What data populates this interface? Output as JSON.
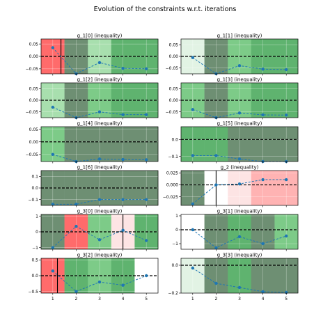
{
  "figure_title": "Evolution of the constraints w.r.t. iterations",
  "colors": {
    "line": "#1f77b4",
    "strong_green": "#5fb36f",
    "green": "#7dcb88",
    "light_green": "#a8dfae",
    "pale_green": "#e2f3e4",
    "dark_green": "#6e8f73",
    "red": "#ff6b6b",
    "pink": "#ffb3b3",
    "pale_pink": "#fde4e4",
    "white": "#ffffff",
    "zero_line": "#000000"
  },
  "chart_data": [
    {
      "type": "line",
      "title": "g_1[0] (inequality)",
      "x": [
        1,
        2,
        3,
        4,
        5
      ],
      "values": [
        0.035,
        -0.07,
        -0.025,
        -0.048,
        -0.05
      ],
      "ylim": [
        -0.07,
        0.07
      ],
      "yticks": [
        -0.05,
        0,
        0.05
      ],
      "ytick_labels": [
        "−0.05",
        "0.00",
        "0.05"
      ],
      "cell_fills": [
        "red",
        "dark_green",
        "light_green",
        "strong_green",
        "strong_green"
      ],
      "vline_x": 1.35
    },
    {
      "type": "line",
      "title": "g_1[1] (inequality)",
      "x": [
        1,
        2,
        3,
        4,
        5
      ],
      "values": [
        -0.005,
        -0.075,
        -0.04,
        -0.055,
        -0.057
      ],
      "ylim": [
        -0.075,
        0.075
      ],
      "yticks": [
        -0.05,
        0,
        0.05
      ],
      "ytick_labels": [
        "−0.05",
        "0.00",
        "0.05"
      ],
      "cell_fills": [
        "pale_green",
        "dark_green",
        "green",
        "strong_green",
        "strong_green"
      ],
      "vline_x": null
    },
    {
      "type": "line",
      "title": "g_1[2] (inequality)",
      "x": [
        1,
        2,
        3,
        4,
        5
      ],
      "values": [
        -0.03,
        -0.075,
        -0.05,
        -0.062,
        -0.062
      ],
      "ylim": [
        -0.075,
        0.075
      ],
      "yticks": [
        -0.05,
        0,
        0.05
      ],
      "ytick_labels": [
        "−0.05",
        "0.00",
        "0.05"
      ],
      "cell_fills": [
        "light_green",
        "dark_green",
        "green",
        "strong_green",
        "strong_green"
      ],
      "vline_x": null
    },
    {
      "type": "line",
      "title": "g_1[3] (inequality)",
      "x": [
        1,
        2,
        3,
        4,
        5
      ],
      "values": [
        -0.04,
        -0.075,
        -0.055,
        -0.063,
        -0.064
      ],
      "ylim": [
        -0.075,
        0.075
      ],
      "yticks": [
        -0.05,
        0,
        0.05
      ],
      "ytick_labels": [
        "−0.05",
        "0.00",
        "0.05"
      ],
      "cell_fills": [
        "green",
        "dark_green",
        "green",
        "strong_green",
        "strong_green"
      ],
      "vline_x": null
    },
    {
      "type": "line",
      "title": "g_1[4] (inequality)",
      "x": [
        1,
        2,
        3,
        4,
        5
      ],
      "values": [
        -0.05,
        -0.078,
        -0.068,
        -0.07,
        -0.071
      ],
      "ylim": [
        -0.078,
        0.06
      ],
      "yticks": [
        -0.05,
        0,
        0.05
      ],
      "ytick_labels": [
        "−0.05",
        "0.00",
        "0.05"
      ],
      "cell_fills": [
        "green",
        "dark_green",
        "dark_green",
        "dark_green",
        "dark_green"
      ],
      "vline_x": null
    },
    {
      "type": "line",
      "title": "g_1[5] (inequality)",
      "x": [
        1,
        2,
        3,
        4,
        5
      ],
      "values": [
        -0.095,
        -0.095,
        -0.115,
        -0.13,
        -0.13
      ],
      "ylim": [
        -0.13,
        0.075
      ],
      "yticks": [
        -0.1,
        0
      ],
      "ytick_labels": [
        "−0.1",
        "0.0"
      ],
      "cell_fills": [
        "strong_green",
        "strong_green",
        "dark_green",
        "dark_green",
        "dark_green"
      ],
      "vline_x": null
    },
    {
      "type": "line",
      "title": "g_1[6] (inequality)",
      "x": [
        1,
        2,
        3,
        4,
        5
      ],
      "values": [
        -0.14,
        -0.14,
        -0.1,
        -0.1,
        -0.1
      ],
      "ylim": [
        -0.15,
        0.15
      ],
      "yticks": [
        -0.1,
        0,
        0.1
      ],
      "ytick_labels": [
        "−0.1",
        "0.0",
        "0.1"
      ],
      "cell_fills": [
        "dark_green",
        "dark_green",
        "dark_green",
        "dark_green",
        "dark_green"
      ],
      "vline_x": null
    },
    {
      "type": "line",
      "title": "g_2 (inequality)",
      "x": [
        1,
        2,
        3,
        4,
        5
      ],
      "values": [
        -0.04,
        0.0,
        0.002,
        0.011,
        0.011
      ],
      "ylim": [
        -0.043,
        0.03
      ],
      "yticks": [
        -0.025,
        0,
        0.025
      ],
      "ytick_labels": [
        "−0.025",
        "0.000",
        "0.025"
      ],
      "cell_fills": [
        "dark_green",
        "white",
        "pale_pink",
        "pink",
        "pink"
      ],
      "vline_x": 2.0
    },
    {
      "type": "line",
      "title": "g_3[0] (inequality)",
      "x": [
        1,
        2,
        3,
        4,
        5
      ],
      "values": [
        -1.0,
        0.35,
        -0.5,
        0.1,
        -0.55
      ],
      "ylim": [
        -1.1,
        1.1
      ],
      "yticks": [
        -1,
        0,
        1
      ],
      "ytick_labels": [
        "−1",
        "0",
        "1"
      ],
      "cell_fills": [
        "dark_green",
        "red",
        "green",
        "pale_pink",
        "strong_green"
      ],
      "vline_x": 4.0
    },
    {
      "type": "line",
      "title": "g_3[1] (inequality)",
      "x": [
        1,
        2,
        3,
        4,
        5
      ],
      "values": [
        0.0,
        -1.3,
        -0.5,
        -1.0,
        -0.45
      ],
      "ylim": [
        -1.4,
        1.1
      ],
      "yticks": [
        -1,
        0,
        1
      ],
      "ytick_labels": [
        "−1",
        "0",
        "1"
      ],
      "cell_fills": [
        "white",
        "dark_green",
        "strong_green",
        "dark_green",
        "green"
      ],
      "vline_x": null
    },
    {
      "type": "line",
      "title": "g_3[2] (inequality)",
      "x": [
        1,
        2,
        3,
        4,
        5
      ],
      "values": [
        0.15,
        -0.5,
        -0.2,
        -0.3,
        0.0
      ],
      "ylim": [
        -0.55,
        0.55
      ],
      "yticks": [
        -0.5,
        0,
        0.5
      ],
      "ytick_labels": [
        "−0.5",
        "0.0",
        "0.5"
      ],
      "cell_fills": [
        "red",
        "strong_green",
        "green",
        "strong_green",
        "white"
      ],
      "vline_x": 1.2
    },
    {
      "type": "line",
      "title": "g_3[3] (inequality)",
      "x": [
        1,
        2,
        3,
        4,
        5
      ],
      "values": [
        -0.02,
        -0.13,
        -0.16,
        -0.19,
        -0.195
      ],
      "ylim": [
        -0.2,
        0.05
      ],
      "yticks": [
        -0.2,
        0
      ],
      "ytick_labels": [
        "−0.2",
        "0.0"
      ],
      "cell_fills": [
        "pale_green",
        "dark_green",
        "strong_green",
        "dark_green",
        "dark_green"
      ],
      "vline_x": null
    }
  ]
}
